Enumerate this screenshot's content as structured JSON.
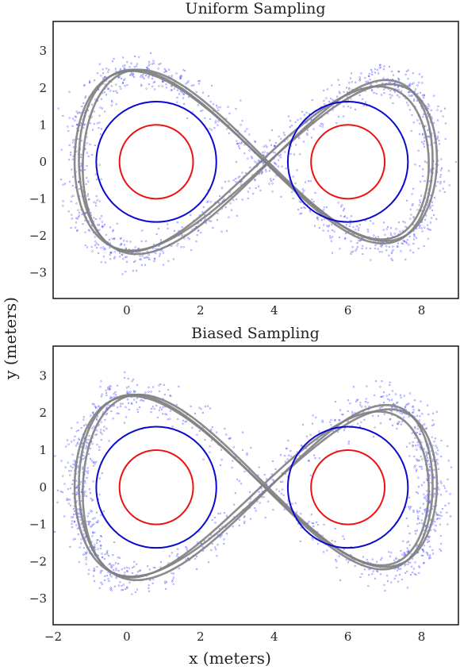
{
  "figure": {
    "xlabel": "x (meters)",
    "ylabel": "y (meters)"
  },
  "colors": {
    "inner_circle": "#ee1111",
    "outer_circle": "#0a0ad0",
    "samples": "#3a3aff",
    "trajectory": "#7f7f7f",
    "frame": "#222222"
  },
  "chart_data": [
    {
      "type": "scatter",
      "title": "Uniform Sampling",
      "xlim": [
        -2,
        9
      ],
      "ylim": [
        -3.7,
        3.8
      ],
      "x_ticks": [
        0,
        2,
        4,
        6,
        8
      ],
      "x_tick_labels_shown": false,
      "y_ticks": [
        3,
        2,
        1,
        0,
        -1,
        -2,
        -3
      ],
      "y_tick_labels": [
        "3",
        "2",
        "1",
        "0",
        "−1",
        "−2",
        "−3"
      ],
      "grid": false,
      "circles": [
        {
          "name": "inner-left",
          "cx": 0.8,
          "cy": 0,
          "r": 1.0,
          "color": "#ee1111"
        },
        {
          "name": "outer-left",
          "cx": 0.8,
          "cy": 0,
          "r": 1.63,
          "color": "#0a0ad0"
        },
        {
          "name": "inner-right",
          "cx": 6.0,
          "cy": 0,
          "r": 1.0,
          "color": "#ee1111"
        },
        {
          "name": "outer-right",
          "cx": 6.0,
          "cy": 0,
          "r": 1.63,
          "color": "#0a0ad0"
        }
      ],
      "trajectory": {
        "shape": "figure-eight",
        "center": [
          3.5,
          -0.35
        ],
        "x_extent": [
          -1.3,
          8.3
        ],
        "y_extent": [
          -2.3,
          2.4
        ]
      },
      "samples": {
        "count": 1400,
        "band_width_m": 0.45
      }
    },
    {
      "type": "scatter",
      "title": "Biased Sampling",
      "xlim": [
        -2,
        9
      ],
      "ylim": [
        -3.7,
        3.8
      ],
      "x_ticks": [
        -2,
        0,
        2,
        4,
        6,
        8
      ],
      "x_tick_labels": [
        "−2",
        "0",
        "2",
        "4",
        "6",
        "8"
      ],
      "x_tick_labels_shown": true,
      "y_ticks": [
        3,
        2,
        1,
        0,
        -1,
        -2,
        -3
      ],
      "y_tick_labels": [
        "3",
        "2",
        "1",
        "0",
        "−1",
        "−2",
        "−3"
      ],
      "grid": false,
      "circles": [
        {
          "name": "inner-left",
          "cx": 0.8,
          "cy": 0,
          "r": 1.0,
          "color": "#ee1111"
        },
        {
          "name": "outer-left",
          "cx": 0.8,
          "cy": 0,
          "r": 1.63,
          "color": "#0a0ad0"
        },
        {
          "name": "inner-right",
          "cx": 6.0,
          "cy": 0,
          "r": 1.0,
          "color": "#ee1111"
        },
        {
          "name": "outer-right",
          "cx": 6.0,
          "cy": 0,
          "r": 1.63,
          "color": "#0a0ad0"
        }
      ],
      "trajectory": {
        "shape": "figure-eight",
        "center": [
          3.5,
          -0.35
        ],
        "x_extent": [
          -1.3,
          8.3
        ],
        "y_extent": [
          -2.3,
          2.4
        ]
      },
      "samples": {
        "count": 1400,
        "band_width_m": 0.45
      }
    }
  ]
}
